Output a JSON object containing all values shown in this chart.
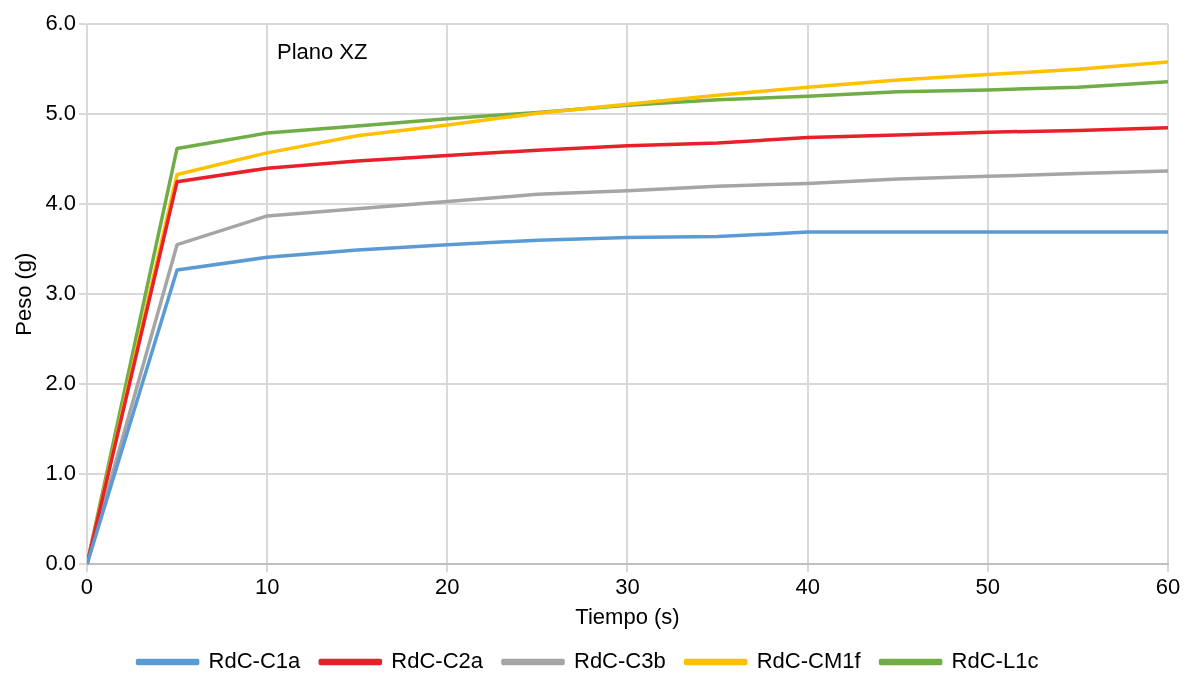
{
  "chart_data": {
    "type": "line",
    "xlabel": "Tiempo (s)",
    "ylabel": "Peso (g)",
    "annotations": [
      "Plano XZ"
    ],
    "x": [
      0,
      5,
      10,
      15,
      20,
      25,
      30,
      35,
      40,
      45,
      50,
      55,
      60
    ],
    "series": [
      {
        "name": "RdC-C1a",
        "color": "#5b9bd5",
        "values": [
          0,
          3.27,
          3.41,
          3.49,
          3.55,
          3.6,
          3.63,
          3.64,
          3.69,
          3.69,
          3.69,
          3.69,
          3.69
        ]
      },
      {
        "name": "RdC-C2a",
        "color": "#e8202a",
        "values": [
          0,
          4.25,
          4.4,
          4.48,
          4.54,
          4.6,
          4.65,
          4.68,
          4.74,
          4.77,
          4.8,
          4.82,
          4.85
        ]
      },
      {
        "name": "RdC-C3b",
        "color": "#a5a5a5",
        "values": [
          0,
          3.55,
          3.87,
          3.95,
          4.03,
          4.11,
          4.15,
          4.2,
          4.23,
          4.28,
          4.31,
          4.34,
          4.37
        ]
      },
      {
        "name": "RdC-CM1f",
        "color": "#ffc000",
        "values": [
          0,
          4.33,
          4.57,
          4.76,
          4.88,
          5.01,
          5.11,
          5.21,
          5.3,
          5.38,
          5.44,
          5.5,
          5.58
        ]
      },
      {
        "name": "RdC-L1c",
        "color": "#70ad47",
        "values": [
          0,
          4.62,
          4.79,
          4.87,
          4.95,
          5.02,
          5.1,
          5.16,
          5.2,
          5.25,
          5.27,
          5.3,
          5.36
        ]
      }
    ],
    "xlim": [
      0,
      60
    ],
    "xticks": [
      0,
      10,
      20,
      30,
      40,
      50,
      60
    ],
    "ylim": [
      0,
      6
    ],
    "yticks": [
      {
        "value": 0,
        "label": "0.0"
      },
      {
        "value": 1,
        "label": "1.0"
      },
      {
        "value": 2,
        "label": "2.0"
      },
      {
        "value": 3,
        "label": "3.0"
      },
      {
        "value": 4,
        "label": "4.0"
      },
      {
        "value": 5,
        "label": "5.0"
      },
      {
        "value": 6,
        "label": "6.0"
      }
    ],
    "grid": true,
    "legend": "bottom",
    "marker": "none",
    "line_style": "solid"
  }
}
